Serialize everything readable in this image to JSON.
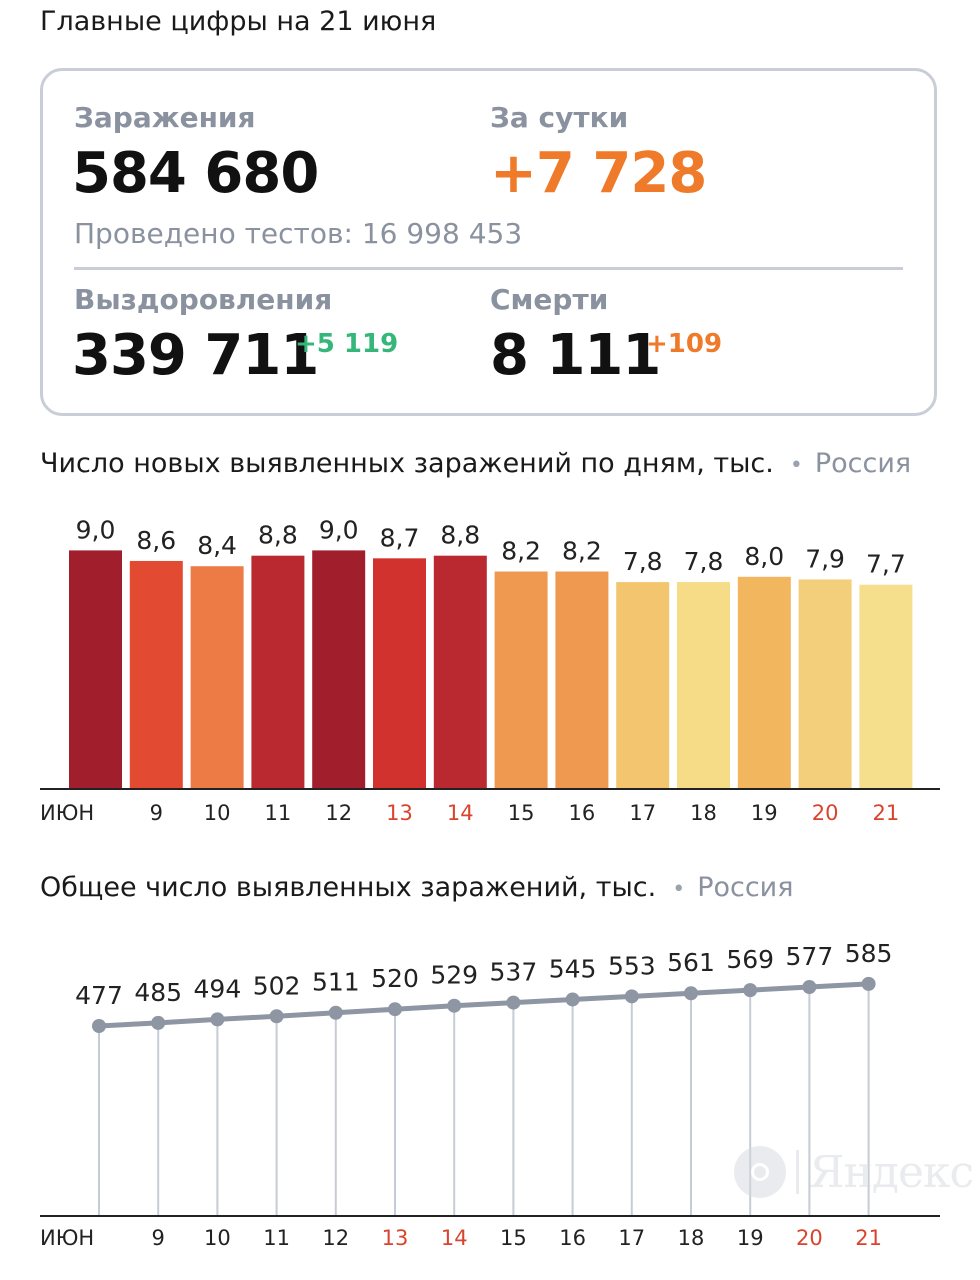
{
  "header": {
    "title": "Главные цифры на 21 июня"
  },
  "stats": {
    "infections": {
      "label": "Заражения",
      "value": "584 680"
    },
    "daily": {
      "label": "За сутки",
      "value": "+7 728"
    },
    "tests": "Проведено тестов: 16 998 453",
    "recoveries": {
      "label": "Выздоровления",
      "value": "339 711",
      "delta": "+5 119"
    },
    "deaths": {
      "label": "Смерти",
      "value": "8 111",
      "delta": "+109"
    }
  },
  "colors": {
    "accent_orange": "#ee7a2a",
    "accent_green": "#35b77a",
    "label_gray": "#8a929f",
    "weekend_red": "#d9442f",
    "line_gray": "#8e95a3"
  },
  "charts_meta": {
    "daily_title": "Число новых выявленных заражений по дням, тыс.",
    "total_title": "Общее число выявленных заражений, тыс.",
    "region": "Россия"
  },
  "watermark": "Яндекс",
  "chart_data": [
    {
      "type": "bar",
      "title": "Число новых выявленных заражений по дням, тыс.",
      "region": "Россия",
      "categories": [
        "ИЮН",
        "9",
        "10",
        "11",
        "12",
        "13",
        "14",
        "15",
        "16",
        "17",
        "18",
        "19",
        "20",
        "21"
      ],
      "values": [
        9.0,
        8.6,
        8.4,
        8.8,
        9.0,
        8.7,
        8.8,
        8.2,
        8.2,
        7.8,
        7.8,
        8.0,
        7.9,
        7.7
      ],
      "value_labels": [
        "9,0",
        "8,6",
        "8,4",
        "8,8",
        "9,0",
        "8,7",
        "8,8",
        "8,2",
        "8,2",
        "7,8",
        "7,8",
        "8,0",
        "7,9",
        "7,7"
      ],
      "bar_colors": [
        "#a11f2c",
        "#e34a32",
        "#ec7b45",
        "#b9292f",
        "#a11f2c",
        "#d2322d",
        "#b9292f",
        "#ee9850",
        "#ee9850",
        "#f3c56f",
        "#f6dc87",
        "#f2b65f",
        "#f4cf7b",
        "#f6df8c"
      ],
      "weekend_ticks": [
        "13",
        "14",
        "20",
        "21"
      ],
      "grid": false
    },
    {
      "type": "line",
      "title": "Общее число выявленных заражений, тыс.",
      "region": "Россия",
      "categories": [
        "ИЮН",
        "9",
        "10",
        "11",
        "12",
        "13",
        "14",
        "15",
        "16",
        "17",
        "18",
        "19",
        "20",
        "21"
      ],
      "values": [
        477,
        485,
        494,
        502,
        511,
        520,
        529,
        537,
        545,
        553,
        561,
        569,
        577,
        585
      ],
      "weekend_ticks": [
        "13",
        "14",
        "20",
        "21"
      ],
      "grid": false
    }
  ]
}
